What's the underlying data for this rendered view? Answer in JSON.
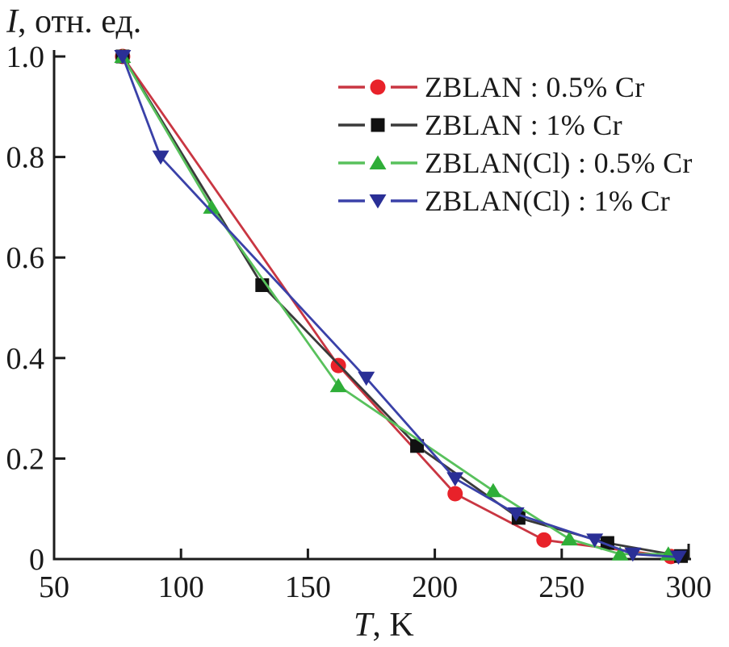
{
  "chart_data": {
    "type": "line",
    "title": "",
    "ylabel_var": "I",
    "ylabel_rest": ", отн. ед.",
    "xlabel_var": "T",
    "xlabel_rest": ", K",
    "xlim": [
      50,
      300
    ],
    "ylim": [
      0,
      1.0
    ],
    "x_tick_values": [
      50,
      100,
      150,
      200,
      250,
      300
    ],
    "x_tick_labels": [
      "50",
      "100",
      "150",
      "200",
      "250",
      "300"
    ],
    "y_tick_values": [
      0,
      0.2,
      0.4,
      0.6,
      0.8,
      1.0
    ],
    "y_tick_labels": [
      "0",
      "0.2",
      "0.4",
      "0.6",
      "0.8",
      "1.0"
    ],
    "grid": false,
    "legend_position": "top-right-inside",
    "axis_color": "#1c1c1c",
    "series": [
      {
        "name": "ZBLAN : 0.5% Cr",
        "marker": "circle",
        "line_color": "#c93642",
        "marker_color": "#e8222a",
        "points": [
          [
            77,
            1.0
          ],
          [
            162,
            0.385
          ],
          [
            208,
            0.13
          ],
          [
            243,
            0.038
          ],
          [
            293,
            0.005
          ]
        ]
      },
      {
        "name": "ZBLAN : 1% Cr",
        "marker": "square",
        "line_color": "#3a3a3a",
        "marker_color": "#111111",
        "points": [
          [
            77,
            1.0
          ],
          [
            132,
            0.545
          ],
          [
            193,
            0.225
          ],
          [
            233,
            0.082
          ],
          [
            268,
            0.032
          ],
          [
            297,
            0.006
          ]
        ]
      },
      {
        "name": "ZBLAN(Cl) : 0.5% Cr",
        "marker": "triangle-up",
        "line_color": "#58c15c",
        "marker_color": "#2fae38",
        "points": [
          [
            77,
            1.0
          ],
          [
            112,
            0.7
          ],
          [
            162,
            0.345
          ],
          [
            223,
            0.136
          ],
          [
            253,
            0.04
          ],
          [
            273,
            0.01
          ],
          [
            292,
            0.01
          ]
        ]
      },
      {
        "name": "ZBLAN(Cl) : 1% Cr",
        "marker": "triangle-down",
        "line_color": "#3a41a8",
        "marker_color": "#2a2f96",
        "points": [
          [
            77,
            1.0
          ],
          [
            92,
            0.8
          ],
          [
            173,
            0.36
          ],
          [
            208,
            0.16
          ],
          [
            232,
            0.09
          ],
          [
            263,
            0.038
          ],
          [
            278,
            0.01
          ],
          [
            296,
            0.004
          ]
        ]
      }
    ]
  }
}
